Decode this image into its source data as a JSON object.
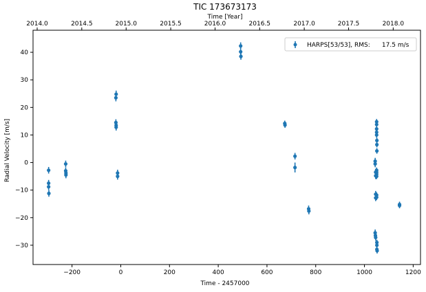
{
  "chart_data": {
    "type": "scatter",
    "title": "TIC 173673173",
    "xlabel": "Time - 2457000",
    "ylabel": "Radial Velocity [m/s]",
    "top_xlabel": "Time [Year]",
    "xlim": [
      -360,
      1230
    ],
    "ylim": [
      -37,
      48
    ],
    "grid": false,
    "legend_position": "top-right",
    "x_ticks": [
      -200,
      0,
      200,
      400,
      600,
      800,
      1000,
      1200
    ],
    "y_ticks": [
      -30,
      -20,
      -10,
      0,
      10,
      20,
      30,
      40
    ],
    "top_ticks": [
      {
        "label": "2014.0",
        "x": -343
      },
      {
        "label": "2014.5",
        "x": -160
      },
      {
        "label": "2015.0",
        "x": 22
      },
      {
        "label": "2015.5",
        "x": 205
      },
      {
        "label": "2016.0",
        "x": 387
      },
      {
        "label": "2016.5",
        "x": 570
      },
      {
        "label": "2017.0",
        "x": 753
      },
      {
        "label": "2017.5",
        "x": 935
      },
      {
        "label": "2018.0",
        "x": 1118
      }
    ],
    "series": [
      {
        "name": "HARPS[53/53], RMS:      17.5 m/s",
        "color": "#1f77b4",
        "points": [
          {
            "x": -296,
            "y": -2.8,
            "err": 1.2
          },
          {
            "x": -296,
            "y": -7.5,
            "err": 1.2
          },
          {
            "x": -296,
            "y": -8.8,
            "err": 1.2
          },
          {
            "x": -295,
            "y": -11.2,
            "err": 1.2
          },
          {
            "x": -226,
            "y": -0.5,
            "err": 1.2
          },
          {
            "x": -226,
            "y": -3.0,
            "err": 1.2
          },
          {
            "x": -225,
            "y": -3.8,
            "err": 1.2
          },
          {
            "x": -225,
            "y": -4.5,
            "err": 1.2
          },
          {
            "x": -20,
            "y": 23.5,
            "err": 1.3
          },
          {
            "x": -19,
            "y": 24.8,
            "err": 1.3
          },
          {
            "x": -20,
            "y": 14.5,
            "err": 1.2
          },
          {
            "x": -19,
            "y": 13.5,
            "err": 1.2
          },
          {
            "x": -19,
            "y": 12.8,
            "err": 1.2
          },
          {
            "x": -13,
            "y": -3.8,
            "err": 1.2
          },
          {
            "x": -13,
            "y": -5.0,
            "err": 1.2
          },
          {
            "x": 492,
            "y": 42.3,
            "err": 1.3
          },
          {
            "x": 492,
            "y": 40.2,
            "err": 1.3
          },
          {
            "x": 493,
            "y": 38.5,
            "err": 1.2
          },
          {
            "x": 673,
            "y": 14.2,
            "err": 1.0
          },
          {
            "x": 674,
            "y": 13.6,
            "err": 1.0
          },
          {
            "x": 715,
            "y": 2.3,
            "err": 1.2
          },
          {
            "x": 715,
            "y": -1.8,
            "err": 1.8
          },
          {
            "x": 771,
            "y": -16.8,
            "err": 1.2
          },
          {
            "x": 772,
            "y": -17.6,
            "err": 1.2
          },
          {
            "x": 1044,
            "y": 0.5,
            "err": 1.2
          },
          {
            "x": 1044,
            "y": -0.5,
            "err": 1.2
          },
          {
            "x": 1046,
            "y": -3.5,
            "err": 1.2
          },
          {
            "x": 1046,
            "y": -4.8,
            "err": 1.2
          },
          {
            "x": 1046,
            "y": -11.5,
            "err": 1.2
          },
          {
            "x": 1046,
            "y": -12.8,
            "err": 1.2
          },
          {
            "x": 1044,
            "y": -25.5,
            "err": 1.2
          },
          {
            "x": 1045,
            "y": -26.5,
            "err": 1.2
          },
          {
            "x": 1046,
            "y": -27.2,
            "err": 1.2
          },
          {
            "x": 1050,
            "y": 14.8,
            "err": 1.0
          },
          {
            "x": 1050,
            "y": 13.8,
            "err": 1.0
          },
          {
            "x": 1050,
            "y": 12.2,
            "err": 1.0
          },
          {
            "x": 1050,
            "y": 11.0,
            "err": 1.0
          },
          {
            "x": 1050,
            "y": 10.0,
            "err": 1.0
          },
          {
            "x": 1051,
            "y": 8.0,
            "err": 1.0
          },
          {
            "x": 1051,
            "y": 6.5,
            "err": 1.0
          },
          {
            "x": 1051,
            "y": 4.2,
            "err": 1.0
          },
          {
            "x": 1050,
            "y": -2.8,
            "err": 1.0
          },
          {
            "x": 1050,
            "y": -3.5,
            "err": 1.0
          },
          {
            "x": 1050,
            "y": -4.2,
            "err": 1.0
          },
          {
            "x": 1050,
            "y": -5.0,
            "err": 1.0
          },
          {
            "x": 1050,
            "y": -11.8,
            "err": 1.0
          },
          {
            "x": 1050,
            "y": -12.6,
            "err": 1.0
          },
          {
            "x": 1051,
            "y": -29.0,
            "err": 1.0
          },
          {
            "x": 1051,
            "y": -30.0,
            "err": 1.0
          },
          {
            "x": 1051,
            "y": -31.5,
            "err": 1.0
          },
          {
            "x": 1052,
            "y": -32.0,
            "err": 1.0
          },
          {
            "x": 1144,
            "y": -15.2,
            "err": 1.0
          },
          {
            "x": 1144,
            "y": -15.6,
            "err": 1.0
          }
        ]
      }
    ]
  }
}
